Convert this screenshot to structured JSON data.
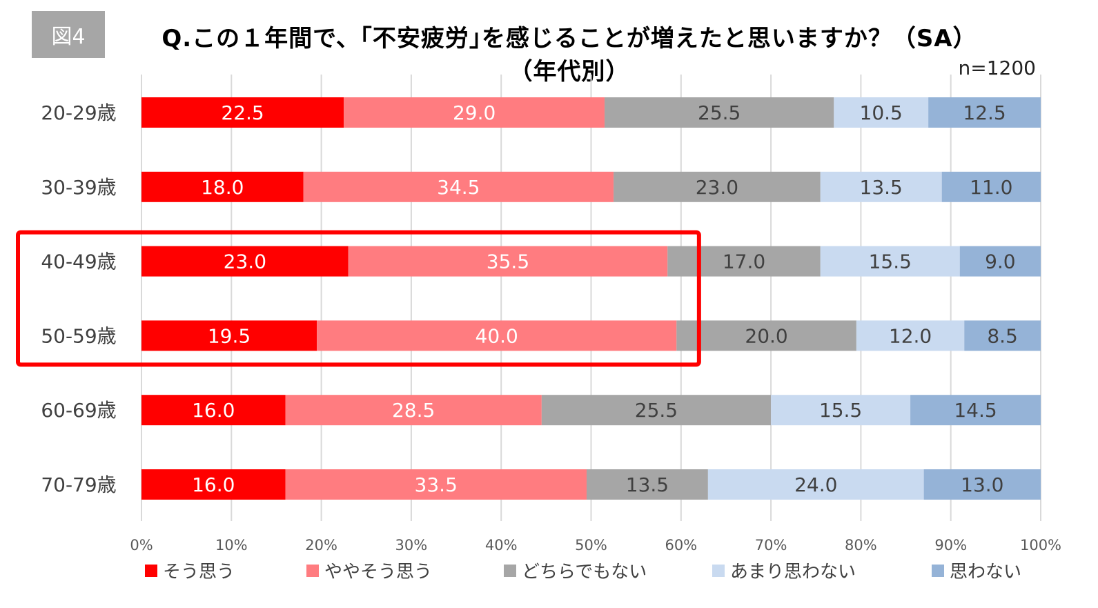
{
  "figure_label": "図4",
  "title_line1": "Q.この１年間で、｢不安疲労｣を感じることが増えたと思いますか？（SA）",
  "title_line2": "（年代別）",
  "sample_size": "n=1200",
  "colors": {
    "series": [
      "#ff0000",
      "#ff7c80",
      "#a6a6a6",
      "#c9daf0",
      "#95b3d7"
    ],
    "label_text": [
      "#ffffff",
      "#ffffff",
      "#404040",
      "#404040",
      "#404040"
    ],
    "highlight_box": "#ff0000",
    "gridline": "#d9d9d9"
  },
  "chart_data": {
    "type": "bar",
    "orientation": "horizontal",
    "stacked": true,
    "categories": [
      "20-29歳",
      "30-39歳",
      "40-49歳",
      "50-59歳",
      "60-69歳",
      "70-79歳"
    ],
    "series": [
      {
        "name": "そう思う",
        "values": [
          22.5,
          18.0,
          23.0,
          19.5,
          16.0,
          16.0
        ]
      },
      {
        "name": "ややそう思う",
        "values": [
          29.0,
          34.5,
          35.5,
          40.0,
          28.5,
          33.5
        ]
      },
      {
        "name": "どちらでもない",
        "values": [
          25.5,
          23.0,
          17.0,
          20.0,
          25.5,
          13.5
        ]
      },
      {
        "name": "あまり思わない",
        "values": [
          10.5,
          13.5,
          15.5,
          12.0,
          15.5,
          24.0
        ]
      },
      {
        "name": "思わない",
        "values": [
          12.5,
          11.0,
          9.0,
          8.5,
          14.5,
          13.0
        ]
      }
    ],
    "value_labels": [
      [
        "22.5",
        "29.0",
        "25.5",
        "10.5",
        "12.5"
      ],
      [
        "18.0",
        "34.5",
        "23.0",
        "13.5",
        "11.0"
      ],
      [
        "23.0",
        "35.5",
        "17.0",
        "15.5",
        "9.0"
      ],
      [
        "19.5",
        "40.0",
        "20.0",
        "12.0",
        "8.5"
      ],
      [
        "16.0",
        "28.5",
        "25.5",
        "15.5",
        "14.5"
      ],
      [
        "16.0",
        "33.5",
        "13.5",
        "24.0",
        "13.0"
      ]
    ],
    "x_ticks": [
      "0%",
      "10%",
      "20%",
      "30%",
      "40%",
      "50%",
      "60%",
      "70%",
      "80%",
      "90%",
      "100%"
    ],
    "xlim": [
      0,
      100
    ],
    "grid": "vertical",
    "legend_position": "bottom",
    "highlight": {
      "categories": [
        "40-49歳",
        "50-59歳"
      ],
      "x_range": [
        0,
        62
      ]
    }
  }
}
